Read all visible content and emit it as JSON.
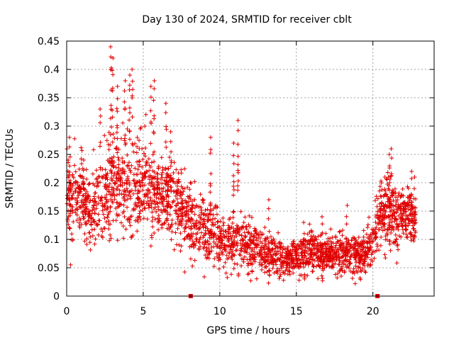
{
  "chart_data": {
    "type": "scatter",
    "title": "Day 130 of 2024, SRMTID for receiver cblt",
    "xlabel": "GPS time / hours",
    "ylabel": "SRMTID / TECUs",
    "xlim": [
      0,
      24
    ],
    "ylim": [
      0,
      0.45
    ],
    "xticks": [
      "0",
      "5",
      "10",
      "15",
      "20"
    ],
    "yticks": [
      "0",
      "0.05",
      "0.1",
      "0.15",
      "0.2",
      "0.25",
      "0.3",
      "0.35",
      "0.4",
      "0.45"
    ],
    "grid": true,
    "marker": "+",
    "color": "#e00000",
    "envelope": {
      "note_points_density": "dense",
      "x": [
        0,
        0.5,
        1,
        1.5,
        2,
        2.5,
        3,
        3.5,
        4,
        4.5,
        5,
        5.5,
        6,
        6.5,
        7,
        7.5,
        8,
        8.5,
        9,
        9.5,
        10,
        10.5,
        11,
        11.5,
        12,
        12.5,
        13,
        13.5,
        14,
        14.5,
        15,
        15.5,
        16,
        16.5,
        17,
        17.5,
        18,
        18.5,
        19,
        19.5,
        20,
        20.5,
        21,
        21.5,
        22,
        22.5,
        22.8
      ],
      "center": [
        0.17,
        0.17,
        0.18,
        0.15,
        0.16,
        0.17,
        0.2,
        0.2,
        0.19,
        0.19,
        0.2,
        0.19,
        0.17,
        0.17,
        0.18,
        0.15,
        0.14,
        0.13,
        0.12,
        0.12,
        0.09,
        0.095,
        0.1,
        0.1,
        0.085,
        0.085,
        0.075,
        0.07,
        0.065,
        0.065,
        0.07,
        0.075,
        0.08,
        0.075,
        0.075,
        0.075,
        0.075,
        0.075,
        0.07,
        0.07,
        0.1,
        0.15,
        0.15,
        0.14,
        0.14,
        0.14,
        0.14
      ],
      "spread": [
        0.06,
        0.06,
        0.06,
        0.05,
        0.06,
        0.07,
        0.09,
        0.08,
        0.07,
        0.07,
        0.07,
        0.07,
        0.06,
        0.06,
        0.07,
        0.05,
        0.05,
        0.05,
        0.05,
        0.05,
        0.04,
        0.04,
        0.05,
        0.04,
        0.035,
        0.035,
        0.03,
        0.03,
        0.03,
        0.03,
        0.03,
        0.03,
        0.035,
        0.03,
        0.03,
        0.03,
        0.03,
        0.03,
        0.03,
        0.03,
        0.04,
        0.05,
        0.05,
        0.045,
        0.045,
        0.045,
        0.045
      ]
    },
    "spikes": [
      {
        "x": 0.2,
        "y": 0.28
      },
      {
        "x": 1.1,
        "y": 0.24
      },
      {
        "x": 2.2,
        "y": 0.33
      },
      {
        "x": 2.9,
        "y": 0.44
      },
      {
        "x": 3.0,
        "y": 0.42
      },
      {
        "x": 3.3,
        "y": 0.37
      },
      {
        "x": 3.8,
        "y": 0.38
      },
      {
        "x": 4.1,
        "y": 0.39
      },
      {
        "x": 4.3,
        "y": 0.4
      },
      {
        "x": 4.6,
        "y": 0.28
      },
      {
        "x": 5.5,
        "y": 0.37
      },
      {
        "x": 5.7,
        "y": 0.38
      },
      {
        "x": 6.5,
        "y": 0.34
      },
      {
        "x": 6.8,
        "y": 0.29
      },
      {
        "x": 9.4,
        "y": 0.28
      },
      {
        "x": 11.2,
        "y": 0.31
      },
      {
        "x": 10.9,
        "y": 0.27
      },
      {
        "x": 13.2,
        "y": 0.17
      },
      {
        "x": 15.5,
        "y": 0.13
      },
      {
        "x": 16.7,
        "y": 0.14
      },
      {
        "x": 18.3,
        "y": 0.16
      },
      {
        "x": 20.8,
        "y": 0.21
      },
      {
        "x": 21.1,
        "y": 0.25
      },
      {
        "x": 21.2,
        "y": 0.26
      },
      {
        "x": 22.5,
        "y": 0.22
      },
      {
        "x": 22.7,
        "y": 0.21
      }
    ],
    "markers_on_axis": [
      {
        "x": 8.1,
        "y": 0
      },
      {
        "x": 20.3,
        "y": 0
      }
    ]
  }
}
